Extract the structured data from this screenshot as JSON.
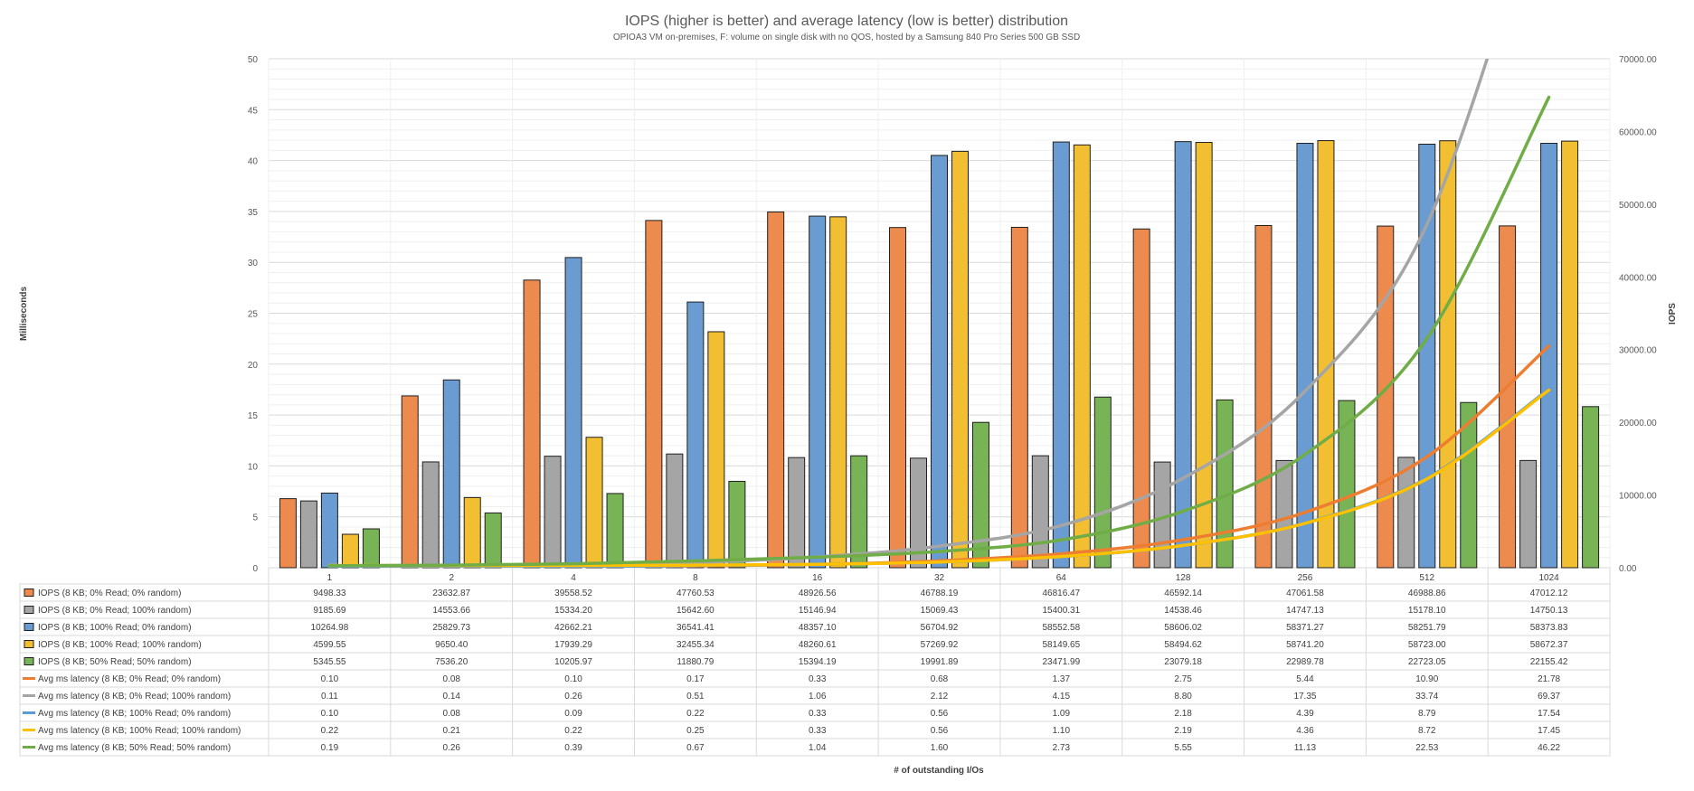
{
  "chart_data": {
    "type": "bar",
    "title": "IOPS (higher is better) and average latency (low is better) distribution",
    "subtitle": "OPIOA3 VM on-premises, F: volume on single disk with no QOS, hosted by a Samsung 840 Pro Series 500 GB SSD",
    "xlabel": "# of outstanding I/Os",
    "ylabel_left": "Milliseconds",
    "ylabel_right": "IOPS",
    "categories": [
      "1",
      "2",
      "4",
      "8",
      "16",
      "32",
      "64",
      "128",
      "256",
      "512",
      "1024"
    ],
    "ylim_left": [
      0,
      50
    ],
    "ylim_right": [
      0,
      70000
    ],
    "y_ticks_left": [
      "0",
      "5",
      "10",
      "15",
      "20",
      "25",
      "30",
      "35",
      "40",
      "45",
      "50"
    ],
    "y_ticks_right": [
      "0.00",
      "10000.00",
      "20000.00",
      "30000.00",
      "40000.00",
      "50000.00",
      "60000.00",
      "70000.00"
    ],
    "grid": true,
    "legend": "data-table",
    "series": [
      {
        "name": "IOPS (8 KB; 0% Read; 0% random)",
        "kind": "bar",
        "axis": "right",
        "color": "#ED8B4F",
        "values": [
          9498.33,
          23632.87,
          39558.52,
          47760.53,
          48926.56,
          46788.19,
          46816.47,
          46592.14,
          47061.58,
          46988.86,
          47012.12
        ],
        "labels": [
          "9498.33",
          "23632.87",
          "39558.52",
          "47760.53",
          "48926.56",
          "46788.19",
          "46816.47",
          "46592.14",
          "47061.58",
          "46988.86",
          "47012.12"
        ]
      },
      {
        "name": "IOPS (8 KB; 0% Read; 100% random)",
        "kind": "bar",
        "axis": "right",
        "color": "#A5A5A5",
        "values": [
          9185.69,
          14553.66,
          15334.2,
          15642.6,
          15146.94,
          15069.43,
          15400.31,
          14538.46,
          14747.13,
          15178.1,
          14750.13
        ],
        "labels": [
          "9185.69",
          "14553.66",
          "15334.20",
          "15642.60",
          "15146.94",
          "15069.43",
          "15400.31",
          "14538.46",
          "14747.13",
          "15178.10",
          "14750.13"
        ]
      },
      {
        "name": "IOPS (8 KB; 100% Read; 0% random)",
        "kind": "bar",
        "axis": "right",
        "color": "#6A9BD1",
        "values": [
          10264.98,
          25829.73,
          42662.21,
          36541.41,
          48357.1,
          56704.92,
          58552.58,
          58606.02,
          58371.27,
          58251.79,
          58373.83
        ],
        "labels": [
          "10264.98",
          "25829.73",
          "42662.21",
          "36541.41",
          "48357.10",
          "56704.92",
          "58552.58",
          "58606.02",
          "58371.27",
          "58251.79",
          "58373.83"
        ]
      },
      {
        "name": "IOPS (8 KB; 100% Read; 100% random)",
        "kind": "bar",
        "axis": "right",
        "color": "#F2BF33",
        "values": [
          4599.55,
          9650.4,
          17939.29,
          32455.34,
          48260.61,
          57269.92,
          58149.65,
          58494.62,
          58741.2,
          58723.0,
          58672.37
        ],
        "labels": [
          "4599.55",
          "9650.40",
          "17939.29",
          "32455.34",
          "48260.61",
          "57269.92",
          "58149.65",
          "58494.62",
          "58741.20",
          "58723.00",
          "58672.37"
        ]
      },
      {
        "name": "IOPS (8 KB; 50% Read; 50% random)",
        "kind": "bar",
        "axis": "right",
        "color": "#78B356",
        "values": [
          5345.55,
          7536.2,
          10205.97,
          11880.79,
          15394.19,
          19991.89,
          23471.99,
          23079.18,
          22989.78,
          22723.05,
          22155.42
        ],
        "labels": [
          "5345.55",
          "7536.20",
          "10205.97",
          "11880.79",
          "15394.19",
          "19991.89",
          "23471.99",
          "23079.18",
          "22989.78",
          "22723.05",
          "22155.42"
        ]
      },
      {
        "name": "Avg ms latency (8 KB; 0% Read; 0% random)",
        "kind": "line",
        "axis": "left",
        "color": "#ED7D31",
        "values": [
          0.1,
          0.08,
          0.1,
          0.17,
          0.33,
          0.68,
          1.37,
          2.75,
          5.44,
          10.9,
          21.78
        ],
        "labels": [
          "0.10",
          "0.08",
          "0.10",
          "0.17",
          "0.33",
          "0.68",
          "1.37",
          "2.75",
          "5.44",
          "10.90",
          "21.78"
        ]
      },
      {
        "name": "Avg ms latency (8 KB; 0% Read; 100% random)",
        "kind": "line",
        "axis": "left",
        "color": "#A5A5A5",
        "values": [
          0.11,
          0.14,
          0.26,
          0.51,
          1.06,
          2.12,
          4.15,
          8.8,
          17.35,
          33.74,
          69.37
        ],
        "labels": [
          "0.11",
          "0.14",
          "0.26",
          "0.51",
          "1.06",
          "2.12",
          "4.15",
          "8.80",
          "17.35",
          "33.74",
          "69.37"
        ]
      },
      {
        "name": "Avg ms latency (8 KB; 100% Read; 0% random)",
        "kind": "line",
        "axis": "left",
        "color": "#5B9BD5",
        "values": [
          0.1,
          0.08,
          0.09,
          0.22,
          0.33,
          0.56,
          1.09,
          2.18,
          4.39,
          8.79,
          17.54
        ],
        "labels": [
          "0.10",
          "0.08",
          "0.09",
          "0.22",
          "0.33",
          "0.56",
          "1.09",
          "2.18",
          "4.39",
          "8.79",
          "17.54"
        ]
      },
      {
        "name": "Avg ms latency (8 KB; 100% Read; 100% random)",
        "kind": "line",
        "axis": "left",
        "color": "#FFC000",
        "values": [
          0.22,
          0.21,
          0.22,
          0.25,
          0.33,
          0.56,
          1.1,
          2.19,
          4.36,
          8.72,
          17.45
        ],
        "labels": [
          "0.22",
          "0.21",
          "0.22",
          "0.25",
          "0.33",
          "0.56",
          "1.10",
          "2.19",
          "4.36",
          "8.72",
          "17.45"
        ]
      },
      {
        "name": "Avg ms latency (8 KB; 50% Read; 50% random)",
        "kind": "line",
        "axis": "left",
        "color": "#70AD47",
        "values": [
          0.19,
          0.26,
          0.39,
          0.67,
          1.04,
          1.6,
          2.73,
          5.55,
          11.13,
          22.53,
          46.22
        ],
        "labels": [
          "0.19",
          "0.26",
          "0.39",
          "0.67",
          "1.04",
          "1.60",
          "2.73",
          "5.55",
          "11.13",
          "22.53",
          "46.22"
        ]
      }
    ]
  }
}
